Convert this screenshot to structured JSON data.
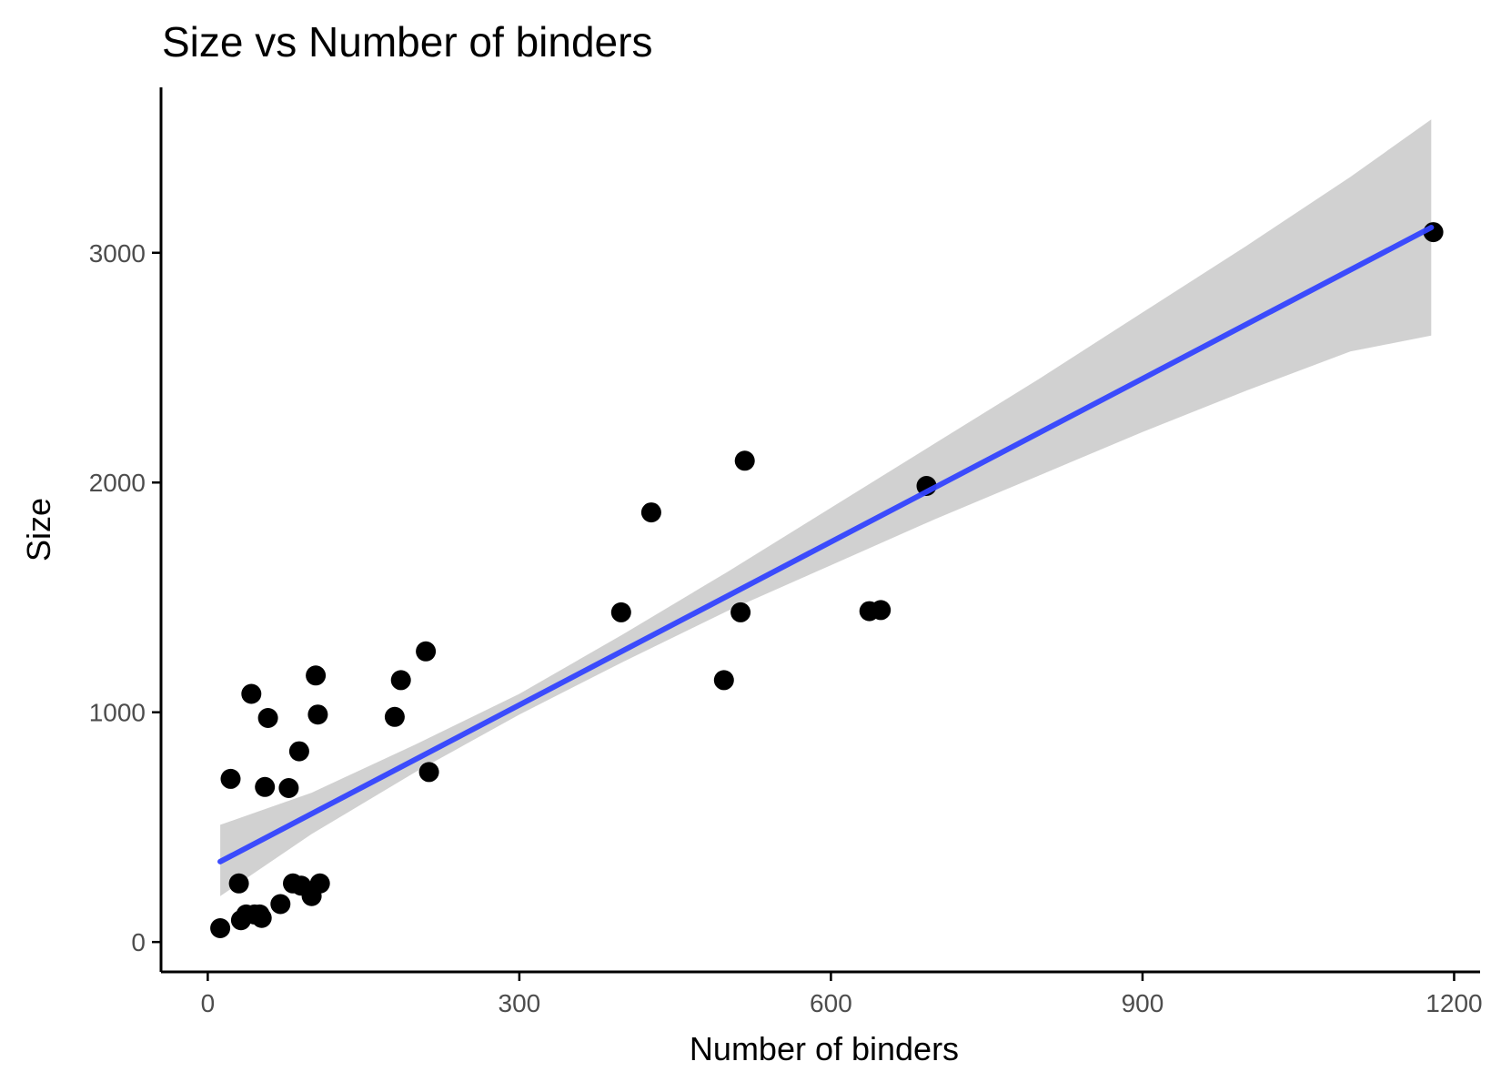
{
  "chart_data": {
    "type": "scatter",
    "title": "Size vs Number of binders",
    "xlabel": "Number of binders",
    "ylabel": "Size",
    "xlim": [
      -45,
      1225
    ],
    "ylim": [
      -130,
      3720
    ],
    "x_ticks": [
      0,
      300,
      600,
      900,
      1200
    ],
    "y_ticks": [
      0,
      1000,
      2000,
      3000
    ],
    "x_tick_labels": [
      "0",
      "300",
      "600",
      "900",
      "1200"
    ],
    "y_tick_labels": [
      "0",
      "1000",
      "2000",
      "3000"
    ],
    "grid": false,
    "legend": "none",
    "point_color": "#000000",
    "fit_line_color": "#3344ff",
    "ribbon_color": "#cccccc",
    "points": [
      {
        "x": 12,
        "y": 60
      },
      {
        "x": 22,
        "y": 710
      },
      {
        "x": 30,
        "y": 255
      },
      {
        "x": 32,
        "y": 95
      },
      {
        "x": 37,
        "y": 120
      },
      {
        "x": 42,
        "y": 1080
      },
      {
        "x": 45,
        "y": 120
      },
      {
        "x": 50,
        "y": 120
      },
      {
        "x": 52,
        "y": 105
      },
      {
        "x": 55,
        "y": 675
      },
      {
        "x": 58,
        "y": 975
      },
      {
        "x": 70,
        "y": 165
      },
      {
        "x": 78,
        "y": 670
      },
      {
        "x": 82,
        "y": 255
      },
      {
        "x": 88,
        "y": 830
      },
      {
        "x": 90,
        "y": 245
      },
      {
        "x": 100,
        "y": 200
      },
      {
        "x": 104,
        "y": 1160
      },
      {
        "x": 106,
        "y": 990
      },
      {
        "x": 108,
        "y": 255
      },
      {
        "x": 180,
        "y": 980
      },
      {
        "x": 186,
        "y": 1140
      },
      {
        "x": 210,
        "y": 1265
      },
      {
        "x": 213,
        "y": 740
      },
      {
        "x": 398,
        "y": 1435
      },
      {
        "x": 427,
        "y": 1870
      },
      {
        "x": 497,
        "y": 1140
      },
      {
        "x": 513,
        "y": 1435
      },
      {
        "x": 517,
        "y": 2095
      },
      {
        "x": 637,
        "y": 1440
      },
      {
        "x": 648,
        "y": 1445
      },
      {
        "x": 692,
        "y": 1985
      },
      {
        "x": 1180,
        "y": 3090
      }
    ],
    "fit_line": [
      {
        "x": 12,
        "y": 350
      },
      {
        "x": 1178,
        "y": 3110
      }
    ],
    "confidence_band": [
      {
        "x": 12,
        "lower": 200,
        "upper": 510
      },
      {
        "x": 100,
        "lower": 470,
        "upper": 650
      },
      {
        "x": 200,
        "lower": 740,
        "upper": 860
      },
      {
        "x": 300,
        "lower": 990,
        "upper": 1080
      },
      {
        "x": 400,
        "lower": 1220,
        "upper": 1340
      },
      {
        "x": 500,
        "lower": 1440,
        "upper": 1610
      },
      {
        "x": 600,
        "lower": 1640,
        "upper": 1890
      },
      {
        "x": 700,
        "lower": 1840,
        "upper": 2170
      },
      {
        "x": 800,
        "lower": 2030,
        "upper": 2450
      },
      {
        "x": 900,
        "lower": 2220,
        "upper": 2740
      },
      {
        "x": 1000,
        "lower": 2400,
        "upper": 3030
      },
      {
        "x": 1100,
        "lower": 2570,
        "upper": 3330
      },
      {
        "x": 1178,
        "lower": 2640,
        "upper": 3580
      }
    ]
  }
}
